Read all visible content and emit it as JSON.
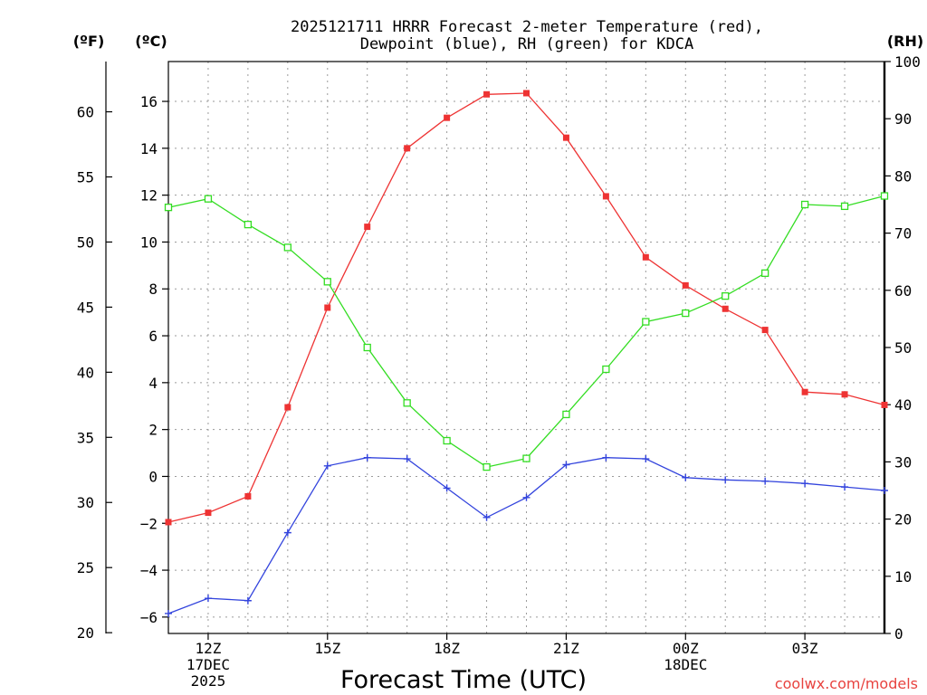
{
  "title": {
    "line1": "2025121711 HRRR Forecast 2-meter Temperature (red),",
    "line2": "Dewpoint (blue), RH (green) for KDCA"
  },
  "units": {
    "f": "(ºF)",
    "c": "(ºC)",
    "rh": "(RH)"
  },
  "xlabel": "Forecast Time (UTC)",
  "credit": "coolwx.com/models",
  "chart_data": {
    "type": "line",
    "title": "2025121711 HRRR Forecast 2-meter Temperature (red), Dewpoint (blue), RH (green) for KDCA",
    "xlabel": "Forecast Time (UTC)",
    "x": [
      11,
      12,
      13,
      14,
      15,
      16,
      17,
      18,
      19,
      20,
      21,
      22,
      23,
      24,
      25,
      26,
      27,
      28,
      29
    ],
    "x_unit": "hours UTC since 00Z 17DEC2025",
    "xlim": [
      11,
      29
    ],
    "ylim_c": [
      -6.7,
      17.7
    ],
    "ylim_rh": [
      0,
      100
    ],
    "x_ticks": [
      {
        "x": 12,
        "lines": [
          "12Z",
          "17DEC",
          "2025"
        ]
      },
      {
        "x": 15,
        "lines": [
          "15Z"
        ]
      },
      {
        "x": 18,
        "lines": [
          "18Z"
        ]
      },
      {
        "x": 21,
        "lines": [
          "21Z"
        ]
      },
      {
        "x": 24,
        "lines": [
          "00Z",
          "18DEC"
        ]
      },
      {
        "x": 27,
        "lines": [
          "03Z"
        ]
      }
    ],
    "y_ticks_c": [
      -6,
      -4,
      -2,
      0,
      2,
      4,
      6,
      8,
      10,
      12,
      14,
      16
    ],
    "y_ticks_f": [
      20,
      25,
      30,
      35,
      40,
      45,
      50,
      55,
      60
    ],
    "y_ticks_rh": [
      0,
      10,
      20,
      30,
      40,
      50,
      60,
      70,
      80,
      90,
      100
    ],
    "series": [
      {
        "name": "Temperature",
        "axis": "c",
        "color": "#ee3333",
        "marker": "filled-square",
        "values": [
          -1.95,
          -1.55,
          -0.85,
          2.95,
          7.2,
          10.65,
          14.0,
          15.3,
          16.3,
          16.35,
          14.45,
          11.95,
          9.35,
          8.15,
          7.15,
          6.25,
          3.6,
          3.5,
          3.05
        ]
      },
      {
        "name": "Dewpoint",
        "axis": "c",
        "color": "#3344dd",
        "marker": "plus",
        "values": [
          -5.85,
          -5.2,
          -5.3,
          -2.4,
          0.45,
          0.8,
          0.75,
          -0.5,
          -1.75,
          -0.9,
          0.5,
          0.8,
          0.75,
          -0.05,
          -0.15,
          -0.2,
          -0.3,
          -0.45,
          -0.6
        ]
      },
      {
        "name": "RH",
        "axis": "rh",
        "color": "#33dd22",
        "marker": "open-square",
        "values": [
          74.5,
          76.0,
          71.5,
          67.5,
          61.5,
          50.0,
          40.3,
          33.7,
          29.1,
          30.6,
          38.3,
          46.2,
          54.5,
          56.0,
          59.0,
          63.0,
          75.0,
          74.7,
          76.5
        ]
      }
    ]
  }
}
